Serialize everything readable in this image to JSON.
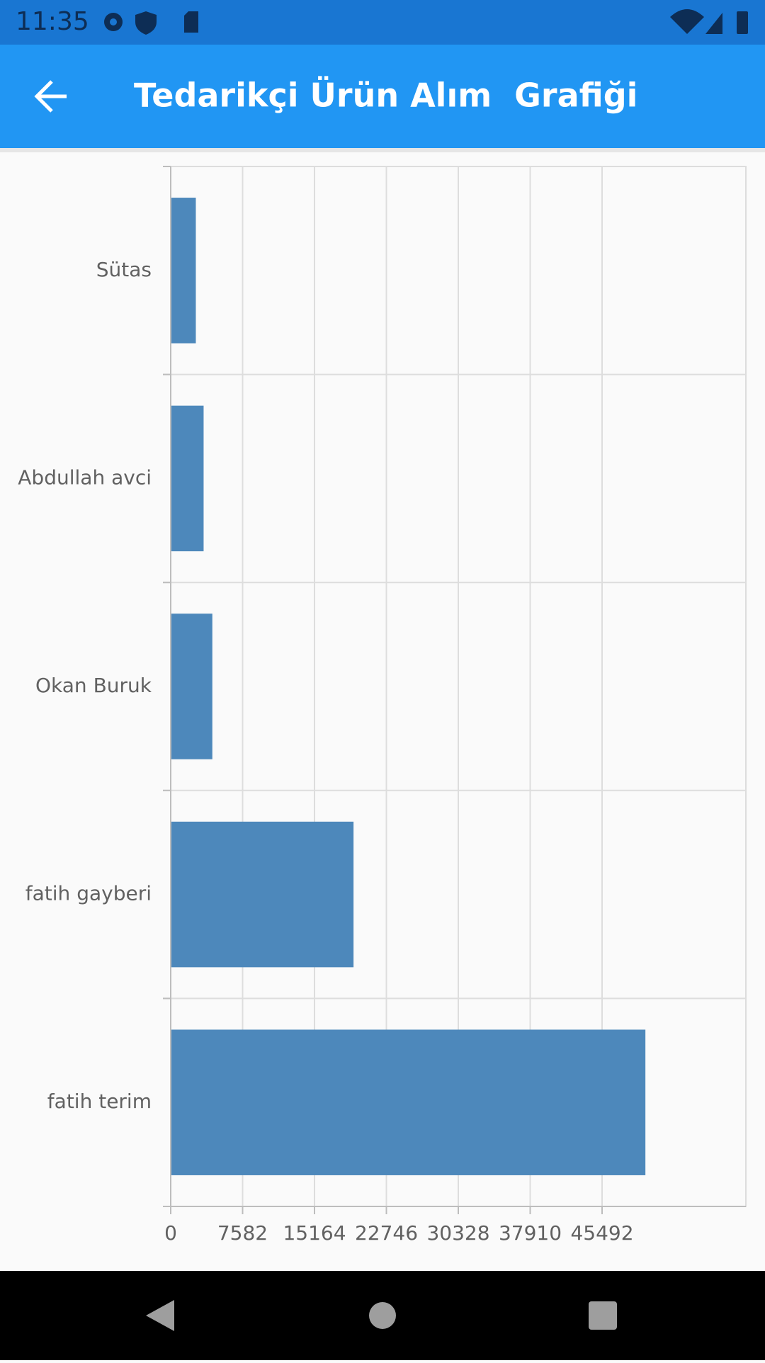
{
  "status_bar": {
    "time": "11:35"
  },
  "chart_data": {
    "type": "bar",
    "orientation": "horizontal",
    "title": "Tedarikçi Ürün Alım  Grafiği",
    "categories": [
      "Sütas",
      "Abdullah avci",
      "Okan Buruk",
      "fatih gayberi",
      "fatih terim"
    ],
    "values": [
      2650,
      3470,
      4390,
      19280,
      50060
    ],
    "color": "#4d88bb",
    "xlim": [
      0,
      60656
    ],
    "xticks": [
      0,
      7582,
      15164,
      22746,
      30328,
      37910,
      45492
    ],
    "grid": true
  }
}
